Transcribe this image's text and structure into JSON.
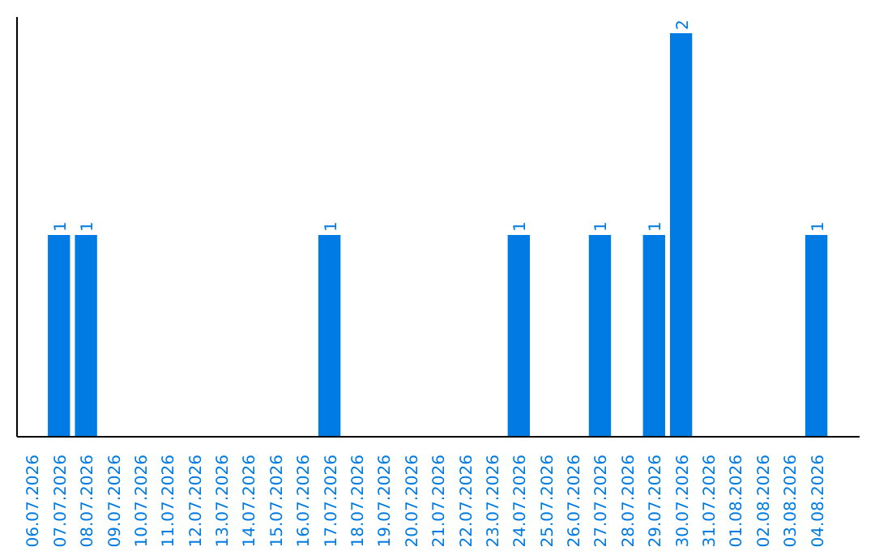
{
  "chart_data": {
    "type": "bar",
    "categories": [
      "06.07.2026",
      "07.07.2026",
      "08.07.2026",
      "09.07.2026",
      "10.07.2026",
      "11.07.2026",
      "12.07.2026",
      "13.07.2026",
      "14.07.2026",
      "15.07.2026",
      "16.07.2026",
      "17.07.2026",
      "18.07.2026",
      "19.07.2026",
      "20.07.2026",
      "21.07.2026",
      "22.07.2026",
      "23.07.2026",
      "24.07.2026",
      "25.07.2026",
      "26.07.2026",
      "27.07.2026",
      "28.07.2026",
      "29.07.2026",
      "30.07.2026",
      "31.07.2026",
      "01.08.2026",
      "02.08.2026",
      "03.08.2026",
      "04.08.2026"
    ],
    "values": [
      0,
      1,
      1,
      0,
      0,
      0,
      0,
      0,
      0,
      0,
      0,
      1,
      0,
      0,
      0,
      0,
      0,
      0,
      1,
      0,
      0,
      1,
      0,
      1,
      2,
      0,
      0,
      0,
      0,
      1
    ],
    "value_labels": [
      null,
      "1",
      "1",
      null,
      null,
      null,
      null,
      null,
      null,
      null,
      null,
      "1",
      null,
      null,
      null,
      null,
      null,
      null,
      "1",
      null,
      null,
      "1",
      null,
      "1",
      "2",
      null,
      null,
      null,
      null,
      "1"
    ],
    "color": "#007be3",
    "tick_labels": "x"
  }
}
